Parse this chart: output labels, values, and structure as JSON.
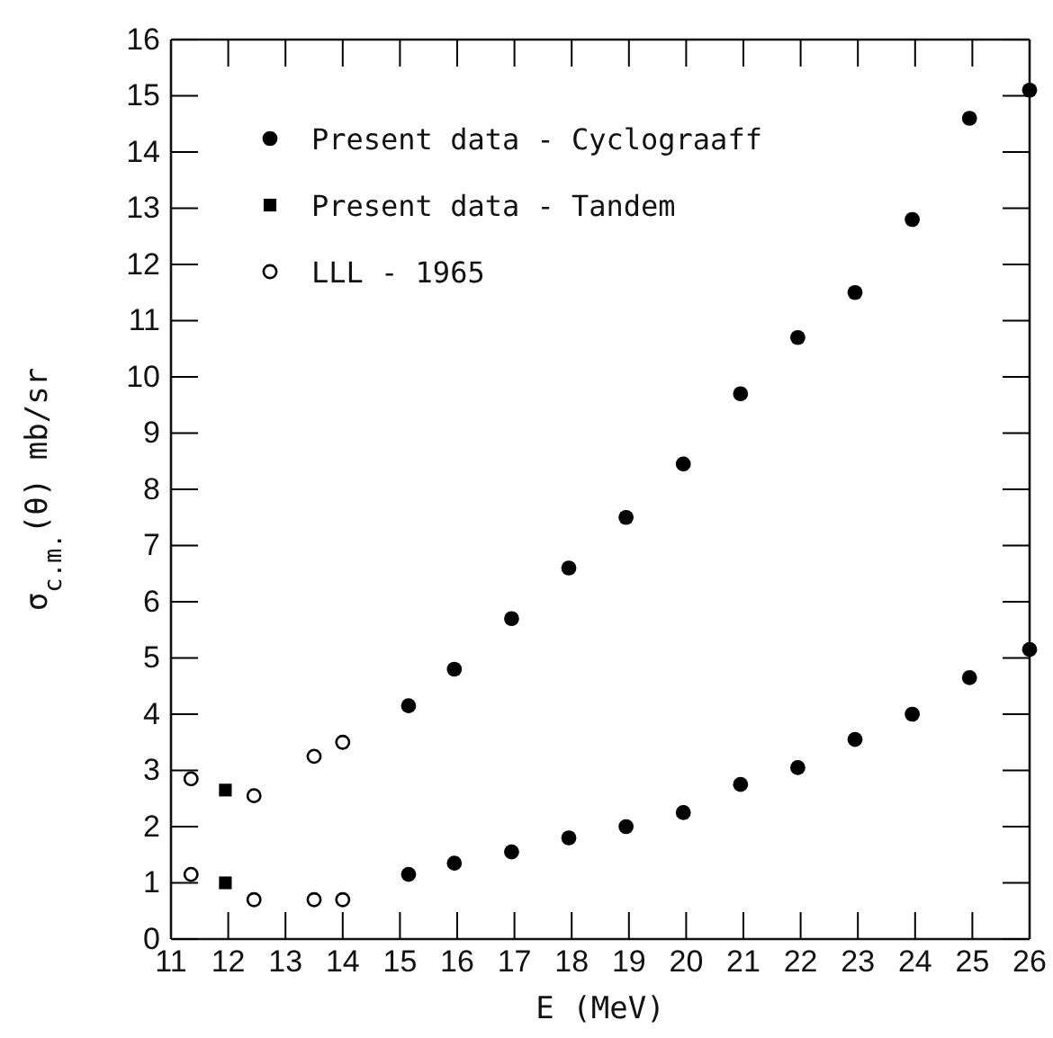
{
  "chart_data": {
    "type": "scatter",
    "xlabel": "E (MeV)",
    "ylabel": "σ$_{c.m.}$(θ) mb/sr",
    "xlim": [
      11,
      26
    ],
    "xticks": [
      11,
      12,
      13,
      14,
      15,
      16,
      17,
      18,
      19,
      20,
      21,
      22,
      23,
      24,
      25,
      26
    ],
    "ylim": [
      0,
      16
    ],
    "yticks": [
      0,
      1,
      2,
      3,
      4,
      5,
      6,
      7,
      8,
      9,
      10,
      11,
      12,
      13,
      14,
      15,
      16
    ],
    "grid": false,
    "legend": "top left",
    "series": [
      {
        "name": "Present data - Cyclograaff",
        "color": "#000000",
        "marker": "circle",
        "x": [
          15.15,
          15.95,
          16.95,
          17.95,
          18.95,
          19.95,
          20.95,
          21.95,
          22.95,
          23.95,
          24.95,
          26,
          15.15,
          15.95,
          16.95,
          17.95,
          18.95,
          19.95,
          20.95,
          21.95,
          22.95,
          23.95,
          24.95,
          26
        ],
        "values": [
          4.15,
          4.8,
          5.7,
          6.6,
          7.5,
          8.45,
          9.7,
          10.7,
          11.5,
          12.8,
          14.6,
          15.1,
          1.15,
          1.35,
          1.55,
          1.8,
          2.0,
          2.25,
          2.75,
          3.05,
          3.55,
          4.0,
          4.65,
          5.15
        ]
      },
      {
        "name": "Present data - Tandem",
        "color": "#000000",
        "marker": "square",
        "x": [
          11.95,
          11.95
        ],
        "values": [
          2.65,
          1.0
        ]
      },
      {
        "name": "LLL - 1965",
        "color": "#ffffff",
        "marker": "circle",
        "x": [
          11.35,
          12.45,
          13.5,
          14.0,
          11.35,
          12.45,
          13.5,
          14.0
        ],
        "values": [
          2.85,
          2.55,
          3.25,
          3.5,
          1.15,
          0.7,
          0.7,
          0.7
        ]
      }
    ]
  }
}
